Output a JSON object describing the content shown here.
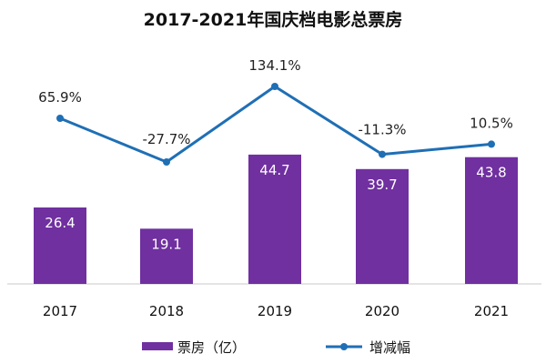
{
  "chart_data": {
    "type": "bar",
    "title": "2017-2021年国庆档电影总票房",
    "categories": [
      "2017",
      "2018",
      "2019",
      "2020",
      "2021"
    ],
    "series": [
      {
        "name": "票房（亿）",
        "type": "bar",
        "values": [
          26.4,
          19.1,
          44.7,
          39.7,
          43.8
        ],
        "labels": [
          "26.4",
          "19.1",
          "44.7",
          "39.7",
          "43.8"
        ],
        "color": "#7030a0"
      },
      {
        "name": "增减幅",
        "type": "line",
        "values": [
          65.9,
          -27.7,
          134.1,
          -11.3,
          10.5
        ],
        "labels": [
          "65.9%",
          "-27.7%",
          "134.1%",
          "-11.3%",
          "10.5%"
        ],
        "color": "#1f6fb5"
      }
    ],
    "xlabel": "",
    "ylabel": "",
    "ylim": [
      0,
      50
    ],
    "y2lim": [
      -50,
      160
    ],
    "grid": false,
    "legend": "bottom"
  }
}
